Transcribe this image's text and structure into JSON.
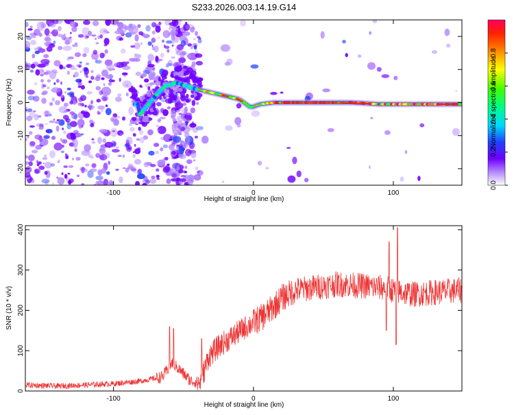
{
  "page": {
    "title": "S233.2026.003.14.19.G14"
  },
  "chart_data": [
    {
      "id": "spectrogram",
      "type": "heatmap",
      "title": "S233.2026.003.14.19.G14",
      "xlabel": "Height of straight line (km)",
      "ylabel": "Frequency (Hz)",
      "xlim": [
        -163,
        149
      ],
      "ylim": [
        -25,
        25
      ],
      "x_ticks": [
        -100,
        0,
        100
      ],
      "y_ticks": [
        -20,
        -10,
        0,
        10,
        20
      ],
      "x_tick_labels": [
        "-100",
        "0",
        "100"
      ],
      "y_tick_labels": [
        "-20",
        "-10",
        "0",
        "10",
        "20"
      ],
      "colorbar": {
        "label": "Normalized spectral amplitude",
        "range": [
          0,
          1
        ],
        "ticks": [
          0,
          0.2,
          0.4,
          0.6,
          0.8
        ],
        "tick_labels": [
          "0.0",
          "0.2",
          "0.4",
          "0.6",
          "0.8"
        ],
        "colors": [
          "#ffffff",
          "#b388ff",
          "#7000ff",
          "#2040ff",
          "#00d8ff",
          "#00ff80",
          "#40ff00",
          "#ffff00",
          "#ff8000",
          "#ff2000",
          "#ff0060"
        ]
      },
      "ridge": [
        {
          "x": -82,
          "f": -4
        },
        {
          "x": -76,
          "f": -1
        },
        {
          "x": -70,
          "f": 2
        },
        {
          "x": -63,
          "f": 5
        },
        {
          "x": -55,
          "f": 6
        },
        {
          "x": -48,
          "f": 5
        },
        {
          "x": -40,
          "f": 4
        },
        {
          "x": -30,
          "f": 3
        },
        {
          "x": -20,
          "f": 2
        },
        {
          "x": -10,
          "f": 1
        },
        {
          "x": -2,
          "f": -1.5
        },
        {
          "x": 5,
          "f": -0.5
        },
        {
          "x": 15,
          "f": 0
        },
        {
          "x": 40,
          "f": 0
        },
        {
          "x": 70,
          "f": 0
        },
        {
          "x": 90,
          "f": -0.5
        },
        {
          "x": 110,
          "f": -0.5
        },
        {
          "x": 130,
          "f": -0.5
        },
        {
          "x": 149,
          "f": -0.5
        }
      ]
    },
    {
      "id": "snr",
      "type": "line",
      "xlabel": "Height of straight line (km)",
      "ylabel": "SNR (10 * v/v)",
      "xlim": [
        -163,
        149
      ],
      "ylim": [
        0,
        410
      ],
      "x_ticks": [
        -100,
        0,
        100
      ],
      "y_ticks": [
        0,
        100,
        200,
        300,
        400
      ],
      "x_tick_labels": [
        "-100",
        "0",
        "100"
      ],
      "y_tick_labels": [
        "0",
        "100",
        "200",
        "300",
        "400"
      ],
      "series": [
        {
          "name": "SNR",
          "color": "#ee3333",
          "x": [
            -163,
            -140,
            -120,
            -100,
            -80,
            -65,
            -58,
            -52,
            -45,
            -38,
            -32,
            -25,
            -15,
            -5,
            5,
            12,
            20,
            30,
            40,
            60,
            80,
            95,
            105,
            115,
            130,
            149
          ],
          "y": [
            15,
            12,
            15,
            18,
            25,
            35,
            70,
            50,
            25,
            20,
            85,
            110,
            135,
            160,
            180,
            200,
            230,
            250,
            255,
            265,
            260,
            255,
            245,
            240,
            245,
            250
          ]
        }
      ],
      "spikes": [
        {
          "x": -60,
          "y": 160
        },
        {
          "x": -57,
          "y": 155
        },
        {
          "x": -37,
          "y": 130
        },
        {
          "x": 95,
          "y": 320
        },
        {
          "x": 97,
          "y": 370
        },
        {
          "x": 103,
          "y": 405
        },
        {
          "x": 95,
          "y": 150
        },
        {
          "x": 102,
          "y": 115
        }
      ]
    }
  ]
}
